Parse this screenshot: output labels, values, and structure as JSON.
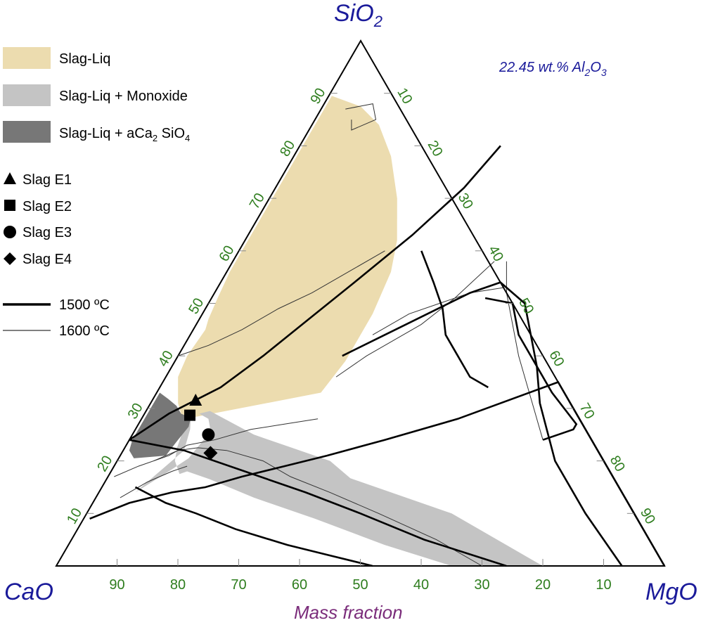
{
  "chart_data": {
    "type": "ternary",
    "vertices": {
      "top": {
        "label": "SiO",
        "sub": "2"
      },
      "left": {
        "label": "CaO",
        "sub": ""
      },
      "right": {
        "label": "MgO",
        "sub": ""
      }
    },
    "axis_title": "Mass fraction",
    "annotation": {
      "prefix": "22.45 wt.% Al",
      "sub1": "2",
      "mid": "O",
      "sub2": "3"
    },
    "ticks": {
      "sio2": [
        "10",
        "20",
        "30",
        "40",
        "50",
        "60",
        "70",
        "80",
        "90"
      ],
      "mgo": [
        "10",
        "20",
        "30",
        "40",
        "50",
        "60",
        "70",
        "80",
        "90"
      ],
      "bottom": [
        "90",
        "80",
        "70",
        "60",
        "50",
        "40",
        "30",
        "20",
        "10"
      ]
    },
    "tick_values": [
      10,
      20,
      30,
      40,
      50,
      60,
      70,
      80,
      90
    ],
    "legend": {
      "regions": [
        {
          "label": "Slag-Liq",
          "color": "#ecdcaf"
        },
        {
          "label": "Slag-Liq + Monoxide",
          "color": "#c4c4c4"
        },
        {
          "label_main": "Slag-Liq + aCa",
          "sub1": "2",
          "label_mid": " SiO",
          "sub2": "4",
          "color": "#777777"
        }
      ],
      "markers": [
        {
          "label": "Slag E1",
          "shape": "triangle"
        },
        {
          "label": "Slag E2",
          "shape": "square"
        },
        {
          "label": "Slag E3",
          "shape": "circle"
        },
        {
          "label": "Slag E4",
          "shape": "diamond"
        }
      ],
      "lines": [
        {
          "label": "1500 ºC",
          "weight": "thick"
        },
        {
          "label": "1600 ºC",
          "weight": "thin"
        }
      ]
    },
    "points": [
      {
        "name": "Slag E1",
        "shape": "triangle",
        "sio2": 31.6,
        "mgo": 7.1,
        "cao": 61.3
      },
      {
        "name": "Slag E2",
        "shape": "square",
        "sio2": 28.7,
        "mgo": 7.6,
        "cao": 63.7
      },
      {
        "name": "Slag E3",
        "shape": "circle",
        "sio2": 25.0,
        "mgo": 12.5,
        "cao": 62.5
      },
      {
        "name": "Slag E4",
        "shape": "diamond",
        "sio2": 21.5,
        "mgo": 14.6,
        "cao": 63.9
      }
    ],
    "regions": [
      {
        "name": "Slag-Liq",
        "color": "#ecdcaf",
        "outline": [
          [
            87.5,
            6.25
          ],
          [
            84,
            11
          ],
          [
            78,
            16
          ],
          [
            70,
            21
          ],
          [
            62,
            25
          ],
          [
            56,
            27
          ],
          [
            48,
            28
          ],
          [
            39,
            28
          ],
          [
            33,
            27
          ],
          [
            28.2,
            8
          ],
          [
            29,
            6
          ],
          [
            31,
            4.5
          ],
          [
            36,
            2
          ],
          [
            40,
            1.5
          ],
          [
            45,
            2
          ],
          [
            47,
            1.5
          ],
          [
            51,
            1
          ],
          [
            56,
            0.5
          ],
          [
            60,
            0.5
          ],
          [
            65,
            0.5
          ],
          [
            70,
            0.5
          ],
          [
            75,
            0.5
          ],
          [
            80,
            0.5
          ],
          [
            85,
            0.5
          ],
          [
            89.5,
            0.5
          ]
        ]
      },
      {
        "name": "Slag-Liq + Monoxide",
        "color": "#c4c4c4",
        "outline": [
          [
            28.2,
            8
          ],
          [
            26,
            9
          ],
          [
            22,
            10
          ],
          [
            18,
            8
          ],
          [
            14,
            6
          ],
          [
            18,
            9.5
          ],
          [
            20.5,
            11.5
          ],
          [
            23,
            12
          ],
          [
            25.5,
            12.5
          ],
          [
            26.5,
            12
          ],
          [
            28,
            11
          ],
          [
            29,
            9
          ],
          [
            29.5,
            10.5
          ],
          [
            25,
            20
          ],
          [
            20,
            35
          ],
          [
            16.7,
            40
          ],
          [
            10,
            60
          ],
          [
            0,
            80
          ],
          [
            0,
            65
          ],
          [
            4,
            52
          ],
          [
            9,
            38
          ],
          [
            13,
            26
          ],
          [
            16.5,
            17
          ],
          [
            18,
            12.5
          ],
          [
            17.5,
            11.5
          ],
          [
            20,
            9.5
          ],
          [
            22.5,
            8.6
          ],
          [
            25.5,
            8
          ]
        ]
      },
      {
        "name": "Slag-Liq + aCa2 SiO4",
        "color": "#777777",
        "outline": [
          [
            33,
            0.5
          ],
          [
            31.8,
            2.5
          ],
          [
            30.5,
            4.5
          ],
          [
            29,
            6
          ],
          [
            28.2,
            8
          ],
          [
            26.5,
            8.5
          ],
          [
            24,
            8
          ],
          [
            21,
            7.5
          ],
          [
            20.5,
            2.5
          ],
          [
            22,
            1
          ],
          [
            24,
            0.5
          ],
          [
            27,
            0.5
          ],
          [
            30,
            0.5
          ]
        ]
      }
    ],
    "isotherm_1500": [
      [
        [
          24,
          0
        ],
        [
          29,
          4
        ],
        [
          34,
          10
        ],
        [
          40,
          14
        ],
        [
          47,
          18
        ],
        [
          54,
          22
        ],
        [
          63,
          27
        ],
        [
          72,
          31
        ],
        [
          80,
          33
        ]
      ],
      [
        [
          24,
          0
        ],
        [
          22,
          10
        ],
        [
          18,
          22
        ],
        [
          14,
          34
        ],
        [
          10,
          45
        ],
        [
          5,
          58
        ],
        [
          0,
          74
        ]
      ],
      [
        [
          40,
          27
        ],
        [
          44,
          32
        ],
        [
          48,
          37
        ],
        [
          52,
          42
        ],
        [
          54,
          46
        ],
        [
          50,
          52
        ],
        [
          44,
          56
        ],
        [
          38,
          60
        ],
        [
          31,
          64
        ],
        [
          20,
          72
        ],
        [
          10,
          82
        ],
        [
          0,
          93
        ]
      ],
      [
        [
          15,
          5.5
        ],
        [
          12,
          12
        ],
        [
          10,
          18
        ],
        [
          7,
          26
        ],
        [
          4,
          36
        ],
        [
          2,
          44
        ],
        [
          0,
          52
        ]
      ],
      [
        [
          9,
          1
        ],
        [
          12,
          6
        ],
        [
          14,
          12
        ],
        [
          15,
          17
        ],
        [
          17,
          22
        ],
        [
          19,
          28
        ],
        [
          21,
          34
        ],
        [
          24,
          42
        ],
        [
          28,
          52
        ],
        [
          35,
          65
        ],
        [
          0,
          100
        ]
      ],
      [
        [
          60,
          30
        ],
        [
          54,
          35
        ],
        [
          49,
          39
        ],
        [
          44,
          42
        ],
        [
          40,
          46
        ],
        [
          36,
          50
        ],
        [
          34,
          54
        ]
      ],
      [
        [
          24,
          68
        ],
        [
          26,
          72
        ],
        [
          27,
          72
        ],
        [
          33,
          65
        ],
        [
          44,
          54
        ],
        [
          50,
          50
        ],
        [
          51,
          45
        ]
      ]
    ],
    "isotherm_1600": [
      [
        [
          44,
          30
        ],
        [
          48,
          34
        ],
        [
          50,
          38
        ],
        [
          52,
          42
        ],
        [
          53,
          47
        ]
      ],
      [
        [
          36,
          28
        ],
        [
          40,
          31
        ],
        [
          43,
          34
        ],
        [
          46,
          37
        ],
        [
          51,
          40
        ],
        [
          58,
          43
        ]
      ],
      [
        [
          58,
          45
        ],
        [
          52,
          48
        ],
        [
          46,
          52
        ],
        [
          40,
          56
        ],
        [
          32,
          62
        ],
        [
          24,
          68
        ]
      ],
      [
        [
          17,
          1
        ],
        [
          19,
          4
        ],
        [
          21,
          8
        ],
        [
          23,
          10
        ],
        [
          24,
          14
        ],
        [
          26,
          19
        ],
        [
          27,
          24
        ],
        [
          28,
          29
        ]
      ],
      [
        [
          87,
          4
        ],
        [
          88,
          8
        ],
        [
          85,
          10
        ],
        [
          83,
          7
        ],
        [
          85,
          6
        ]
      ],
      [
        [
          13,
          4
        ],
        [
          16,
          7
        ],
        [
          18,
          10
        ],
        [
          19,
          12
        ]
      ],
      [
        [
          20,
          6
        ],
        [
          22,
          9
        ],
        [
          22.5,
          12
        ],
        [
          22,
          17
        ],
        [
          20,
          24
        ],
        [
          17,
          30
        ],
        [
          14,
          38
        ],
        [
          10,
          48
        ],
        [
          5,
          60
        ],
        [
          0,
          70
        ]
      ],
      [
        [
          40,
          0
        ],
        [
          42,
          4
        ],
        [
          45,
          8
        ],
        [
          49,
          12
        ],
        [
          52,
          16
        ],
        [
          56,
          20
        ],
        [
          60,
          24
        ]
      ]
    ]
  }
}
